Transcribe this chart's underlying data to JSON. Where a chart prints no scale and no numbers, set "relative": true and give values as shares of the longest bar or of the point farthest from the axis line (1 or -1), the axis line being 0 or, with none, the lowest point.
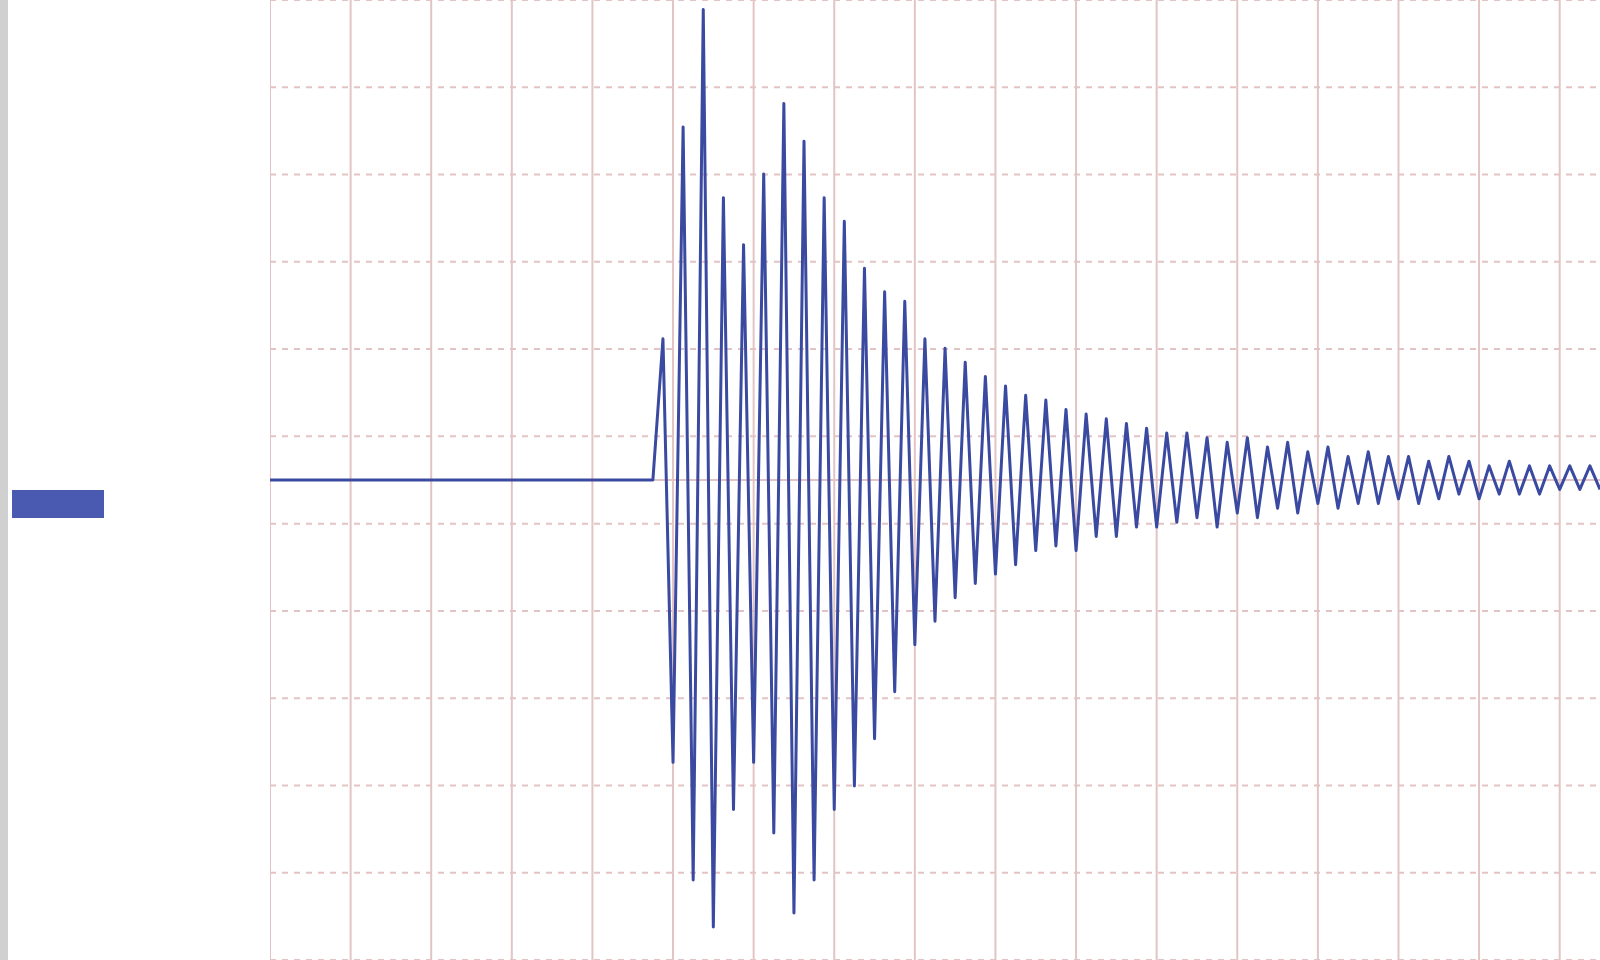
{
  "chart_data": {
    "type": "line",
    "relative": true,
    "grid": true,
    "legend": false,
    "marker": "none",
    "line_style": "solid",
    "categories": [
      null,
      null,
      null,
      null,
      null,
      null,
      null,
      null,
      null,
      null,
      null,
      null,
      null,
      null,
      null,
      null,
      null,
      null,
      null,
      null,
      null,
      null,
      null,
      null,
      null,
      null,
      null,
      null,
      null,
      null,
      null,
      null,
      null,
      null,
      null,
      null,
      null,
      null,
      null,
      null,
      null,
      null,
      null,
      null,
      null,
      null,
      null,
      null,
      null,
      null,
      null,
      null,
      null,
      null,
      null,
      null,
      null,
      null,
      null,
      null,
      null,
      null,
      null,
      null,
      null,
      null,
      null,
      null,
      null,
      null,
      null,
      null,
      null,
      null,
      null,
      null,
      null,
      null,
      null,
      null,
      null,
      null,
      null,
      null,
      null,
      null,
      null,
      null,
      null,
      null,
      null,
      null,
      null,
      null,
      null,
      null,
      null,
      null,
      null,
      null,
      null,
      null,
      null,
      null,
      null,
      null,
      null,
      null,
      null,
      null,
      null,
      null,
      null,
      null,
      null,
      null,
      null,
      null,
      null,
      null,
      null,
      null,
      null,
      null,
      null,
      null,
      null,
      null,
      null,
      null,
      null,
      null,
      null
    ],
    "series": [
      {
        "color": "#3a4aa0",
        "values": [
          0,
          0,
          0,
          0,
          0,
          0,
          0,
          0,
          0,
          0,
          0,
          0,
          0,
          0,
          0,
          0,
          0,
          0,
          0,
          0,
          0,
          0,
          0,
          0,
          0,
          0,
          0,
          0,
          0,
          0,
          0,
          0,
          0,
          0,
          0,
          0,
          0,
          0,
          0,
          0.3,
          -0.6,
          0.75,
          -0.85,
          1,
          -0.95,
          0.6,
          -0.7,
          0.5,
          -0.6,
          0.65,
          -0.75,
          0.8,
          -0.92,
          0.72,
          -0.85,
          0.6,
          -0.7,
          0.55,
          -0.65,
          0.45,
          -0.55,
          0.4,
          -0.45,
          0.38,
          -0.35,
          0.3,
          -0.3,
          0.28,
          -0.25,
          0.25,
          -0.22,
          0.22,
          -0.2,
          0.2,
          -0.18,
          0.18,
          -0.15,
          0.17,
          -0.14,
          0.15,
          -0.15,
          0.14,
          -0.12,
          0.13,
          -0.12,
          0.12,
          -0.1,
          0.11,
          -0.1,
          0.1,
          -0.09,
          0.1,
          -0.08,
          0.09,
          -0.1,
          0.08,
          -0.07,
          0.09,
          -0.08,
          0.07,
          -0.06,
          0.08,
          -0.07,
          0.06,
          -0.05,
          0.07,
          -0.06,
          0.05,
          -0.05,
          0.06,
          -0.05,
          0.05,
          -0.04,
          0.05,
          -0.05,
          0.04,
          -0.04,
          0.05,
          -0.03,
          0.04,
          -0.04,
          0.03,
          -0.03,
          0.04,
          -0.03,
          0.03,
          -0.03,
          0.03,
          -0.02,
          0.03,
          -0.02,
          0.03,
          -0.02
        ]
      }
    ]
  }
}
